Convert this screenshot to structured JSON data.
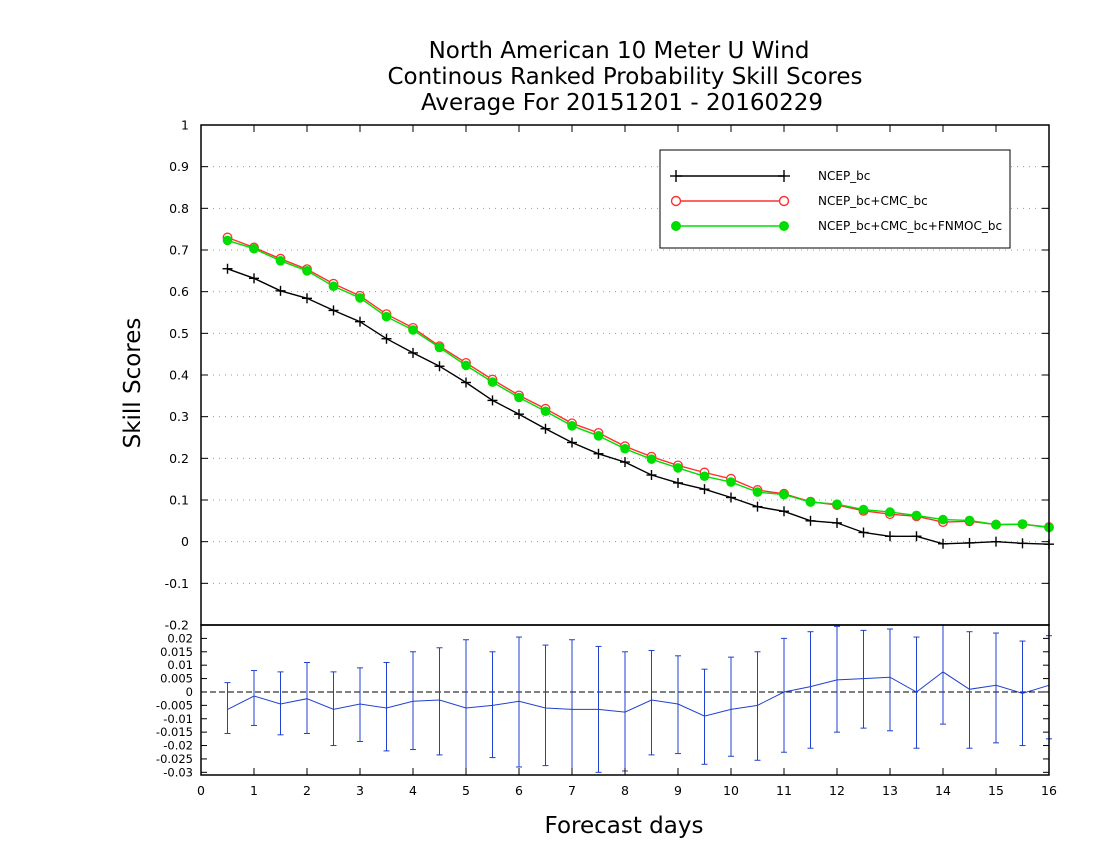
{
  "chart_data": [
    {
      "type": "line",
      "title": [
        "North American 10 Meter U Wind",
        "Continous Ranked Probability Skill Scores",
        "Average For 20151201 - 20160229"
      ],
      "xlabel": "Forecast days",
      "ylabel": "Skill Scores",
      "xlim": [
        0,
        16
      ],
      "ylim": [
        -0.2,
        1
      ],
      "yticks": [
        "-0.2",
        "-0.1",
        "0",
        "0.1",
        "0.2",
        "0.3",
        "0.4",
        "0.5",
        "0.6",
        "0.7",
        "0.8",
        "0.9",
        "1"
      ],
      "xticks": [
        "0",
        "1",
        "2",
        "3",
        "4",
        "5",
        "6",
        "7",
        "8",
        "9",
        "10",
        "11",
        "12",
        "13",
        "14",
        "15",
        "16"
      ],
      "grid": true,
      "legend_position": "top-right",
      "x": [
        0.5,
        1,
        1.5,
        2,
        2.5,
        3,
        3.5,
        4,
        4.5,
        5,
        5.5,
        6,
        6.5,
        7,
        7.5,
        8,
        8.5,
        9,
        9.5,
        10,
        10.5,
        11,
        11.5,
        12,
        12.5,
        13,
        13.5,
        14,
        14.5,
        15,
        15.5,
        16
      ],
      "series": [
        {
          "name": "NCEP_bc",
          "color": "#000000",
          "marker": "plus",
          "values": [
            0.655,
            0.632,
            0.602,
            0.584,
            0.555,
            0.528,
            0.487,
            0.453,
            0.421,
            0.382,
            0.339,
            0.306,
            0.271,
            0.238,
            0.211,
            0.191,
            0.16,
            0.141,
            0.126,
            0.106,
            0.084,
            0.073,
            0.05,
            0.045,
            0.022,
            0.013,
            0.013,
            -0.005,
            -0.003,
            0.0,
            -0.004,
            -0.006
          ]
        },
        {
          "name": "NCEP_bc+CMC_bc",
          "color": "#ff3030",
          "marker": "open-circle",
          "values": [
            0.73,
            0.706,
            0.679,
            0.654,
            0.619,
            0.59,
            0.546,
            0.513,
            0.469,
            0.429,
            0.389,
            0.351,
            0.319,
            0.284,
            0.261,
            0.229,
            0.204,
            0.183,
            0.166,
            0.151,
            0.124,
            0.115,
            0.096,
            0.088,
            0.074,
            0.066,
            0.061,
            0.047,
            0.049,
            0.041,
            0.042,
            0.035
          ]
        },
        {
          "name": "NCEP_bc+CMC_bc+FNMOC_bc",
          "color": "#00dd00",
          "marker": "filled-circle",
          "values": [
            0.723,
            0.703,
            0.674,
            0.65,
            0.613,
            0.585,
            0.54,
            0.508,
            0.466,
            0.423,
            0.383,
            0.346,
            0.313,
            0.278,
            0.254,
            0.223,
            0.198,
            0.177,
            0.157,
            0.143,
            0.119,
            0.113,
            0.095,
            0.09,
            0.077,
            0.071,
            0.063,
            0.053,
            0.051,
            0.041,
            0.042,
            0.034
          ]
        }
      ]
    },
    {
      "type": "line",
      "xlabel": "Forecast days",
      "xlim": [
        0,
        16
      ],
      "ylim": [
        -0.031,
        0.025
      ],
      "yticks": [
        "-0.03",
        "-0.025",
        "-0.02",
        "-0.015",
        "-0.01",
        "-0.005",
        "0",
        "0.005",
        "0.01",
        "0.015",
        "0.02"
      ],
      "x": [
        0.5,
        1,
        1.5,
        2,
        2.5,
        3,
        3.5,
        4,
        4.5,
        5,
        5.5,
        6,
        6.5,
        7,
        7.5,
        8,
        8.5,
        9,
        9.5,
        10,
        10.5,
        11,
        11.5,
        12,
        12.5,
        13,
        13.5,
        14,
        14.5,
        15,
        15.5,
        16
      ],
      "series": [
        {
          "name": "",
          "color": "#2040d0",
          "values": [
            -0.0065,
            -0.0015,
            -0.0045,
            -0.0025,
            -0.0065,
            -0.0045,
            -0.006,
            -0.0035,
            -0.003,
            -0.006,
            -0.005,
            -0.0035,
            -0.006,
            -0.0065,
            -0.0065,
            -0.0075,
            -0.003,
            -0.0045,
            -0.009,
            -0.0065,
            -0.005,
            0.0,
            0.002,
            0.0045,
            0.005,
            0.0055,
            0.0,
            0.0075,
            0.001,
            0.0025,
            -0.0005,
            0.0025
          ],
          "error_low": [
            -0.0155,
            -0.0125,
            -0.016,
            -0.0155,
            -0.02,
            -0.0185,
            -0.022,
            -0.0215,
            -0.0235,
            -0.031,
            -0.0245,
            -0.028,
            -0.0275,
            -0.031,
            -0.03,
            -0.0295,
            -0.0235,
            -0.023,
            -0.027,
            -0.024,
            -0.0255,
            -0.0225,
            -0.021,
            -0.015,
            -0.0135,
            -0.0145,
            -0.021,
            -0.012,
            -0.021,
            -0.019,
            -0.02,
            -0.0175
          ],
          "error_high": [
            0.0035,
            0.008,
            0.0075,
            0.011,
            0.0075,
            0.009,
            0.011,
            0.015,
            0.0165,
            0.0195,
            0.015,
            0.0205,
            0.0175,
            0.0195,
            0.017,
            0.015,
            0.0155,
            0.0135,
            0.0085,
            0.013,
            0.015,
            0.02,
            0.0225,
            0.0245,
            0.023,
            0.0235,
            0.0205,
            0.025,
            0.0225,
            0.022,
            0.019,
            0.021
          ]
        }
      ]
    }
  ]
}
